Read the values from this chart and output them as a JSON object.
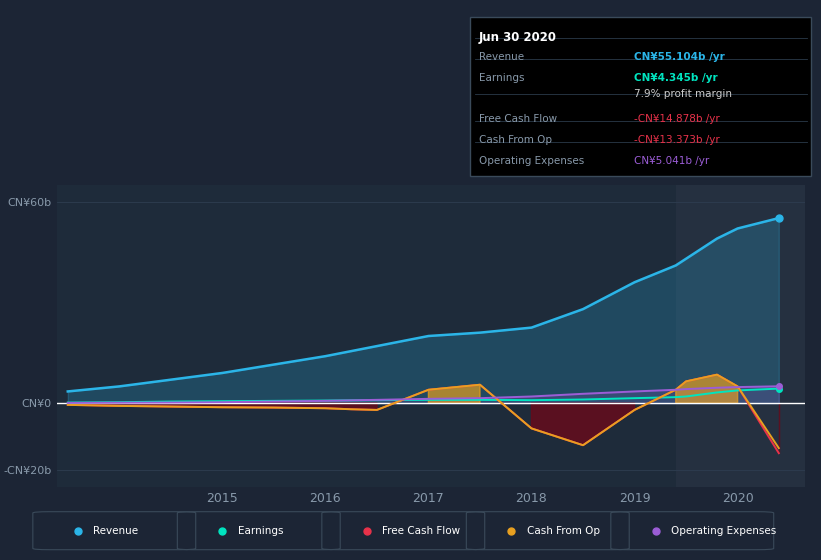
{
  "background_color": "#1c2535",
  "plot_bg_color": "#1e2b3a",
  "highlight_bg_color": "#253040",
  "years": [
    2013.5,
    2014.0,
    2014.5,
    2015.0,
    2015.5,
    2016.0,
    2016.25,
    2016.5,
    2017.0,
    2017.5,
    2018.0,
    2018.5,
    2019.0,
    2019.4,
    2019.5,
    2019.8,
    2020.0,
    2020.4
  ],
  "revenue": [
    3.5,
    5.0,
    7.0,
    9.0,
    11.5,
    14.0,
    15.5,
    17.0,
    20.0,
    21.0,
    22.5,
    28.0,
    36.0,
    41.0,
    43.0,
    49.0,
    52.0,
    55.1
  ],
  "earnings": [
    0.2,
    0.3,
    0.5,
    0.6,
    0.7,
    0.8,
    0.85,
    0.9,
    1.0,
    1.0,
    0.9,
    1.1,
    1.5,
    1.8,
    2.0,
    3.2,
    3.8,
    4.345
  ],
  "free_cash_flow": [
    -0.5,
    -0.8,
    -1.0,
    -1.2,
    -1.3,
    -1.5,
    -1.8,
    -2.0,
    4.0,
    5.5,
    -7.5,
    -12.5,
    -2.0,
    4.0,
    6.5,
    8.5,
    5.0,
    -14.878
  ],
  "cash_from_op": [
    -0.5,
    -0.8,
    -1.0,
    -1.2,
    -1.3,
    -1.5,
    -1.8,
    -2.0,
    4.0,
    5.5,
    -7.5,
    -12.5,
    -2.0,
    4.0,
    6.5,
    8.5,
    5.0,
    -13.373
  ],
  "operating_expenses": [
    0.1,
    0.15,
    0.2,
    0.3,
    0.5,
    0.7,
    0.85,
    1.0,
    1.3,
    1.5,
    2.0,
    2.8,
    3.5,
    4.0,
    4.2,
    4.6,
    4.8,
    5.041
  ],
  "revenue_color": "#2bb5e8",
  "earnings_color": "#00e5c0",
  "fcf_color": "#e8324a",
  "cashfromop_color": "#e8a020",
  "opex_color": "#9b5dd6",
  "fill_pos_color": "#e8a020",
  "fill_neg_color": "#6b0a1a",
  "ylim": [
    -25,
    65
  ],
  "yticks": [
    -20,
    0,
    60
  ],
  "ytick_labels": [
    "-CN¥20b",
    "CN¥0",
    "CN¥60b"
  ],
  "xtick_years": [
    2015,
    2016,
    2017,
    2018,
    2019,
    2020
  ],
  "highlight_start": 2019.4,
  "tooltip_title": "Jun 30 2020",
  "tooltip_rows": [
    [
      "Revenue",
      "CN¥55.104b /yr",
      "#2bb5e8"
    ],
    [
      "Earnings",
      "CN¥4.345b /yr",
      "#00e5c0"
    ],
    [
      "",
      "7.9% profit margin",
      "#cccccc"
    ],
    [
      "Free Cash Flow",
      "-CN¥14.878b /yr",
      "#e8324a"
    ],
    [
      "Cash From Op",
      "-CN¥13.373b /yr",
      "#e8324a"
    ],
    [
      "Operating Expenses",
      "CN¥5.041b /yr",
      "#9b5dd6"
    ]
  ],
  "legend_items": [
    [
      "Revenue",
      "#2bb5e8"
    ],
    [
      "Earnings",
      "#00e5c0"
    ],
    [
      "Free Cash Flow",
      "#e8324a"
    ],
    [
      "Cash From Op",
      "#e8a020"
    ],
    [
      "Operating Expenses",
      "#9b5dd6"
    ]
  ]
}
